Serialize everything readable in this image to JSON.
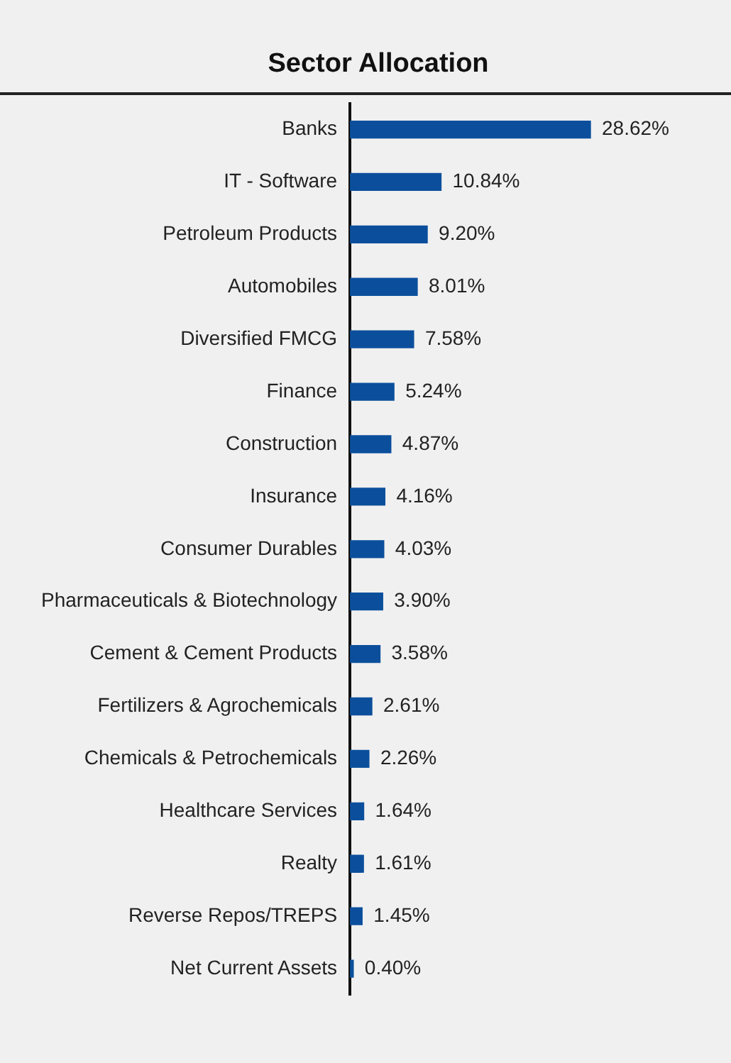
{
  "chart_data": {
    "type": "bar",
    "orientation": "horizontal",
    "title": "Sector Allocation",
    "categories": [
      "Banks",
      "IT - Software",
      "Petroleum Products",
      "Automobiles",
      "Diversified FMCG",
      "Finance",
      "Construction",
      "Insurance",
      "Consumer Durables",
      "Pharmaceuticals & Biotechnology",
      "Cement & Cement Products",
      "Fertilizers & Agrochemicals",
      "Chemicals & Petrochemicals",
      "Healthcare Services",
      "Realty",
      "Reverse Repos/TREPS",
      "Net Current Assets"
    ],
    "values": [
      28.62,
      10.84,
      9.2,
      8.01,
      7.58,
      5.24,
      4.87,
      4.16,
      4.03,
      3.9,
      3.58,
      2.61,
      2.26,
      1.64,
      1.61,
      1.45,
      0.4
    ],
    "value_labels": [
      "28.62%",
      "10.84%",
      "9.20%",
      "8.01%",
      "7.58%",
      "5.24%",
      "4.87%",
      "4.16%",
      "4.03%",
      "3.90%",
      "3.58%",
      "2.61%",
      "2.26%",
      "1.64%",
      "1.61%",
      "1.45%",
      "0.40%"
    ],
    "color": "#0b4f9c",
    "xlim": [
      0,
      45
    ],
    "tick_labels": "y",
    "grid": false,
    "legend": false
  }
}
